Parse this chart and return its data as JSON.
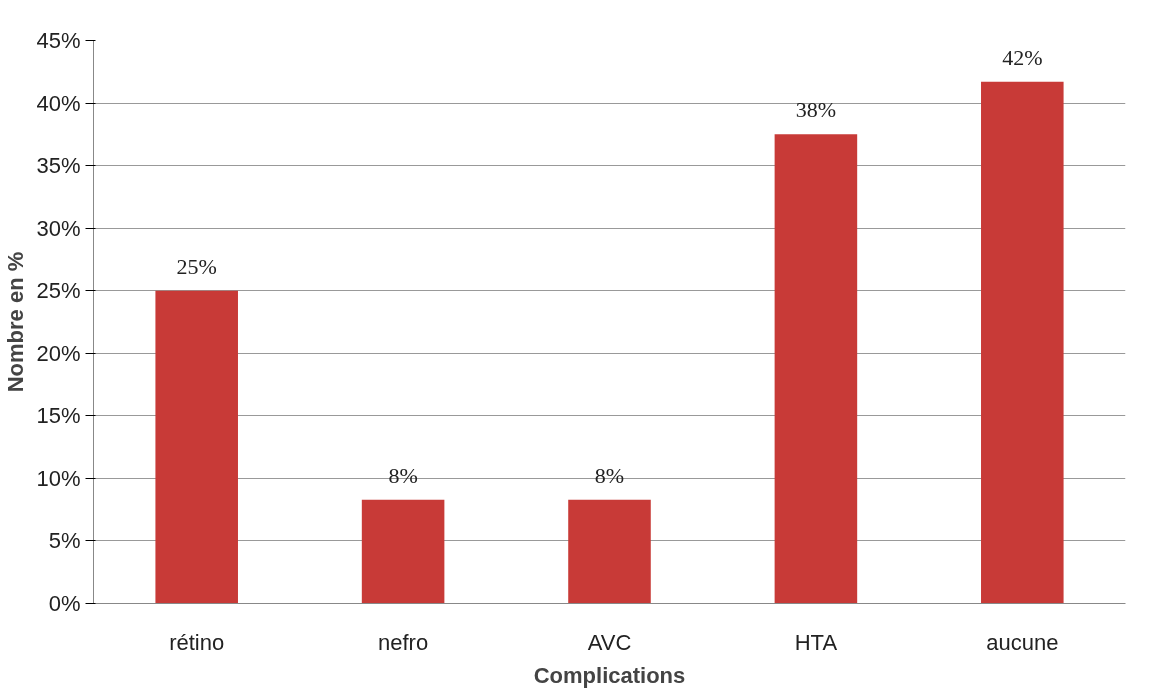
{
  "chart_data": {
    "type": "bar",
    "xlabel": "Complications",
    "ylabel": "Nombre en %",
    "categories": [
      "rétino",
      "nefro",
      "AVC",
      "HTA",
      "aucune"
    ],
    "values": [
      25,
      8.3,
      8.3,
      37.5,
      41.7
    ],
    "value_labels": [
      "25%",
      "8%",
      "8%",
      "38%",
      "42%"
    ],
    "color": "#c83a37",
    "ylim": [
      0,
      45
    ],
    "yticks": [
      {
        "value": 0,
        "label": "0%"
      },
      {
        "value": 5,
        "label": "5%"
      },
      {
        "value": 10,
        "label": "10%"
      },
      {
        "value": 15,
        "label": "15%"
      },
      {
        "value": 20,
        "label": "20%"
      },
      {
        "value": 25,
        "label": "25%"
      },
      {
        "value": 30,
        "label": "30%"
      },
      {
        "value": 35,
        "label": "35%"
      },
      {
        "value": 40,
        "label": "40%"
      },
      {
        "value": 45,
        "label": "45%"
      }
    ],
    "grid": "y"
  }
}
